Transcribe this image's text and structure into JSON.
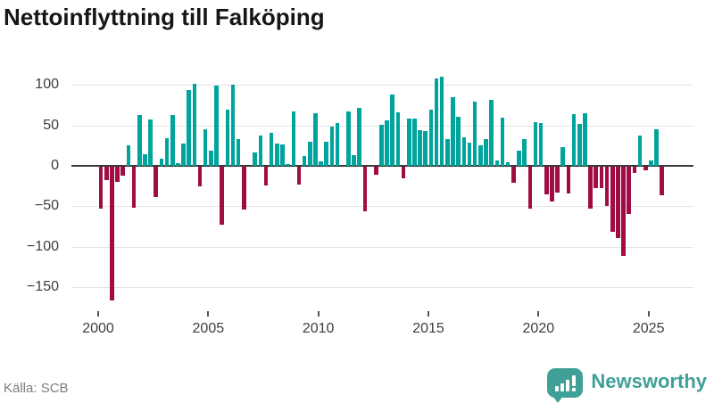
{
  "header": {
    "title": "Nettoinflyttning till Falköping"
  },
  "footer": {
    "source": "Källa: SCB",
    "logo_text": "Newsworthy"
  },
  "colors": {
    "positive": "#00a49c",
    "negative": "#a00d45",
    "logo_teal": "#3fa097",
    "grid": "#e3e3e3",
    "zero_line": "#3a3a3a",
    "axis_text": "#3d3d3d",
    "source_text": "#7c7c7c",
    "title_text": "#161616"
  },
  "chart_data": {
    "type": "bar",
    "title": "Nettoinflyttning till Falköping",
    "xlabel": "",
    "ylabel": "",
    "grid": "horizontal",
    "legend": "none",
    "y_ticks": [
      100,
      50,
      0,
      -50,
      -100,
      -150
    ],
    "x_ticks": [
      2000,
      2005,
      2010,
      2015,
      2020,
      2025
    ],
    "ylim": [
      -175,
      128
    ],
    "bar_color_positive": "#00a49c",
    "bar_color_negative": "#a00d45",
    "categories": [
      "2000Q1",
      "2000Q2",
      "2000Q3",
      "2000Q4",
      "2001Q1",
      "2001Q2",
      "2001Q3",
      "2001Q4",
      "2002Q1",
      "2002Q2",
      "2002Q3",
      "2002Q4",
      "2003Q1",
      "2003Q2",
      "2003Q3",
      "2003Q4",
      "2004Q1",
      "2004Q2",
      "2004Q3",
      "2004Q4",
      "2005Q1",
      "2005Q2",
      "2005Q3",
      "2005Q4",
      "2006Q1",
      "2006Q2",
      "2006Q3",
      "2006Q4",
      "2007Q1",
      "2007Q2",
      "2007Q3",
      "2007Q4",
      "2008Q1",
      "2008Q2",
      "2008Q3",
      "2008Q4",
      "2009Q1",
      "2009Q2",
      "2009Q3",
      "2009Q4",
      "2010Q1",
      "2010Q2",
      "2010Q3",
      "2010Q4",
      "2011Q1",
      "2011Q2",
      "2011Q3",
      "2011Q4",
      "2012Q1",
      "2012Q2",
      "2012Q3",
      "2012Q4",
      "2013Q1",
      "2013Q2",
      "2013Q3",
      "2013Q4",
      "2014Q1",
      "2014Q2",
      "2014Q3",
      "2014Q4",
      "2015Q1",
      "2015Q2",
      "2015Q3",
      "2015Q4",
      "2016Q1",
      "2016Q2",
      "2016Q3",
      "2016Q4",
      "2017Q1",
      "2017Q2",
      "2017Q3",
      "2017Q4",
      "2018Q1",
      "2018Q2",
      "2018Q3",
      "2018Q4",
      "2019Q1",
      "2019Q2",
      "2019Q3",
      "2019Q4",
      "2020Q1",
      "2020Q2",
      "2020Q3",
      "2020Q4",
      "2021Q1",
      "2021Q2",
      "2021Q3",
      "2021Q4",
      "2022Q1",
      "2022Q2",
      "2022Q3",
      "2022Q4",
      "2023Q1",
      "2023Q2",
      "2023Q3",
      "2023Q4",
      "2024Q1",
      "2024Q2",
      "2024Q3",
      "2024Q4",
      "2025Q1",
      "2025Q2",
      "2025Q3"
    ],
    "series": [
      {
        "name": "Nettoinflyttning",
        "values": [
          -52,
          -16,
          -166,
          -19,
          -11,
          25,
          -51,
          63,
          14,
          57,
          -37,
          9,
          34,
          63,
          3,
          28,
          94,
          101,
          -24,
          45,
          19,
          99,
          -72,
          69,
          100,
          33,
          -53,
          0,
          17,
          38,
          -23,
          41,
          28,
          27,
          2,
          67,
          -22,
          12,
          30,
          65,
          5,
          30,
          48,
          53,
          0,
          67,
          13,
          72,
          -55,
          0,
          -10,
          51,
          56,
          88,
          66,
          -14,
          58,
          59,
          44,
          43,
          69,
          108,
          110,
          33,
          85,
          61,
          35,
          29,
          79,
          25,
          33,
          82,
          7,
          60,
          4,
          -20,
          19,
          33,
          -52,
          54,
          53,
          -34,
          -43,
          -32,
          23,
          -33,
          64,
          52,
          65,
          -52,
          -26,
          -27,
          -48,
          -80,
          -88,
          -110,
          -58,
          -8,
          38,
          -4,
          7,
          45,
          -35
        ]
      }
    ]
  }
}
